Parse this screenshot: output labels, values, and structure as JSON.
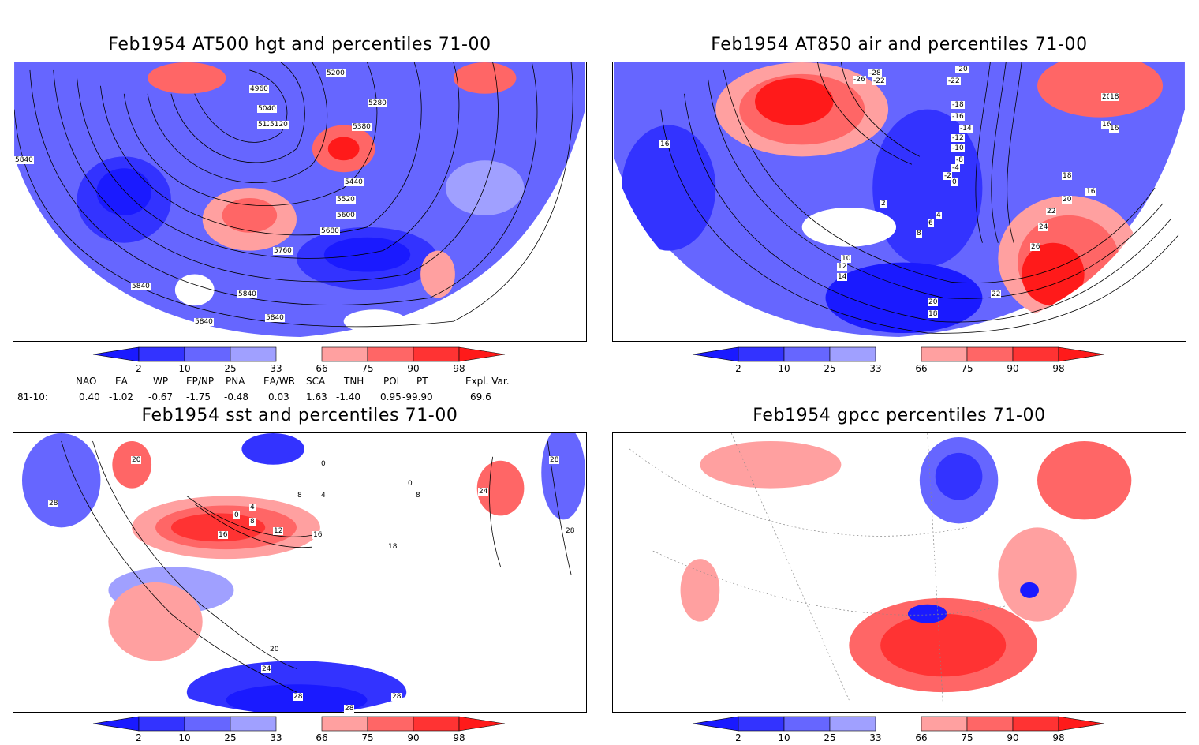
{
  "panels": [
    {
      "id": "hgt500",
      "title": "Feb1954 AT500 hgt and percentiles 71-00",
      "contour_labels": [
        "4960",
        "5040",
        "5120",
        "5200",
        "5120",
        "5280",
        "5380",
        "5440",
        "5520",
        "5600",
        "5680",
        "5760",
        "5840",
        "5840",
        "5840",
        "5840",
        "5840"
      ]
    },
    {
      "id": "air850",
      "title": "Feb1954 AT850 air and percentiles 71-00",
      "contour_labels": [
        "-28",
        "-26",
        "-22",
        "-20",
        "-22",
        "-18",
        "-16",
        "-14",
        "-12",
        "-10",
        "-8",
        "-4",
        "-2",
        "0",
        "2",
        "4",
        "6",
        "8",
        "10",
        "12",
        "14",
        "16",
        "16",
        "18",
        "16",
        "20",
        "22",
        "24",
        "26",
        "22",
        "20",
        "18",
        "20",
        "18",
        "16"
      ]
    },
    {
      "id": "sst",
      "title": "Feb1954 sst and percentiles 71-00",
      "contour_labels": [
        "20",
        "28",
        "0",
        "4",
        "8",
        "12",
        "16",
        "0",
        "4",
        "8",
        "16",
        "18",
        "24",
        "28",
        "28",
        "28",
        "20",
        "24",
        "28",
        "28",
        "0",
        "8"
      ]
    },
    {
      "id": "gpcc",
      "title": "Feb1954 gpcc percentiles 71-00",
      "contour_labels": []
    }
  ],
  "colorbar": {
    "ticks": [
      "2",
      "10",
      "25",
      "33",
      "66",
      "75",
      "90",
      "98"
    ],
    "colors": {
      "lt2": "#1a1aff",
      "c2_10": "#3333ff",
      "c10_25": "#6666ff",
      "c25_33": "#a0a0ff",
      "c33_66": "#ffffff",
      "c66_75": "#ffa0a0",
      "c75_90": "#ff6666",
      "c90_98": "#ff3333",
      "gt98": "#ff1a1a"
    }
  },
  "indices": {
    "headers": [
      "NAO",
      "EA",
      "WP",
      "EP/NP",
      "PNA",
      "EA/WR",
      "SCA",
      "TNH",
      "POL",
      "PT",
      "Expl. Var."
    ],
    "row_label": "81-10:",
    "values": [
      "0.40",
      "-1.02",
      "-0.67",
      "-1.75",
      "-0.48",
      "0.03",
      "1.63",
      "-1.40",
      "0.95",
      "-99.90",
      "69.6"
    ]
  },
  "colors": {
    "coast": "#20c0c0",
    "contour": "#000000",
    "grid": "#888888"
  }
}
